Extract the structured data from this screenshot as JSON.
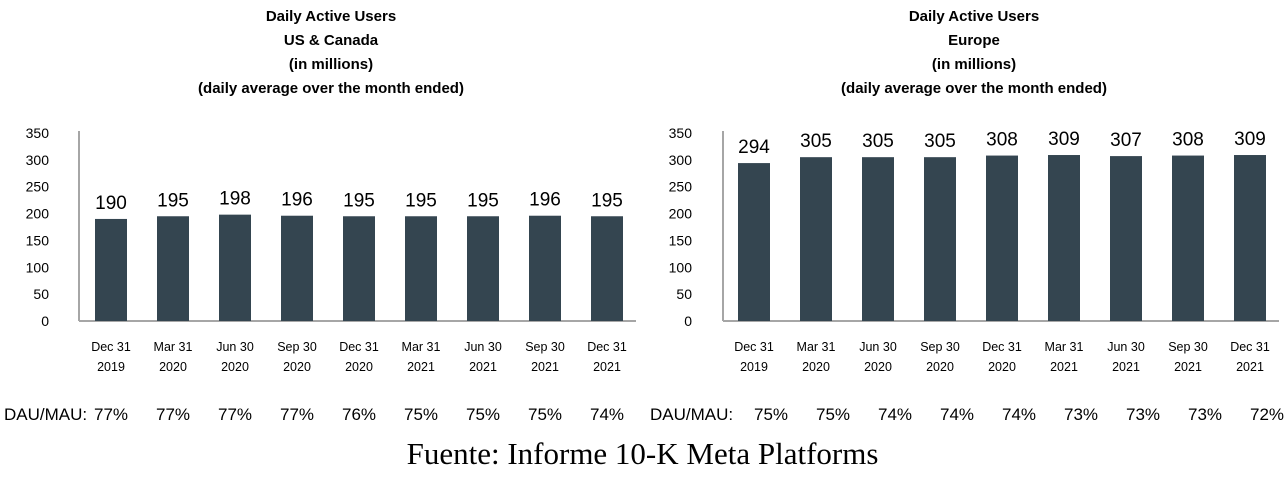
{
  "source_note": "Fuente: Informe 10-K Meta Platforms",
  "ratio_label": "DAU/MAU:",
  "colors": {
    "bar": "#344550",
    "axis": "#a6a6a6",
    "text": "#000000"
  },
  "chart_data": [
    {
      "type": "bar",
      "title_lines": [
        "Daily Active Users",
        "US & Canada",
        "(in millions)",
        "(daily average over the month ended)"
      ],
      "categories": [
        [
          "Dec 31",
          "2019"
        ],
        [
          "Mar 31",
          "2020"
        ],
        [
          "Jun 30",
          "2020"
        ],
        [
          "Sep 30",
          "2020"
        ],
        [
          "Dec 31",
          "2020"
        ],
        [
          "Mar 31",
          "2021"
        ],
        [
          "Jun 30",
          "2021"
        ],
        [
          "Sep 30",
          "2021"
        ],
        [
          "Dec 31",
          "2021"
        ]
      ],
      "values": [
        190,
        195,
        198,
        196,
        195,
        195,
        195,
        196,
        195
      ],
      "ratios": [
        "77%",
        "77%",
        "77%",
        "77%",
        "76%",
        "75%",
        "75%",
        "75%",
        "74%"
      ],
      "yticks": [
        0,
        50,
        100,
        150,
        200,
        250,
        300,
        350
      ],
      "ylim": [
        0,
        350
      ],
      "grid": false
    },
    {
      "type": "bar",
      "title_lines": [
        "Daily Active Users",
        "Europe",
        "(in millions)",
        "(daily average over the month ended)"
      ],
      "categories": [
        [
          "Dec 31",
          "2019"
        ],
        [
          "Mar 31",
          "2020"
        ],
        [
          "Jun 30",
          "2020"
        ],
        [
          "Sep 30",
          "2020"
        ],
        [
          "Dec 31",
          "2020"
        ],
        [
          "Mar 31",
          "2021"
        ],
        [
          "Jun 30",
          "2021"
        ],
        [
          "Sep 30",
          "2021"
        ],
        [
          "Dec 31",
          "2021"
        ]
      ],
      "values": [
        294,
        305,
        305,
        305,
        308,
        309,
        307,
        308,
        309
      ],
      "ratios": [
        "75%",
        "75%",
        "74%",
        "74%",
        "74%",
        "73%",
        "73%",
        "73%",
        "72%"
      ],
      "yticks": [
        0,
        50,
        100,
        150,
        200,
        250,
        300,
        350
      ],
      "ylim": [
        0,
        350
      ],
      "grid": false
    }
  ]
}
